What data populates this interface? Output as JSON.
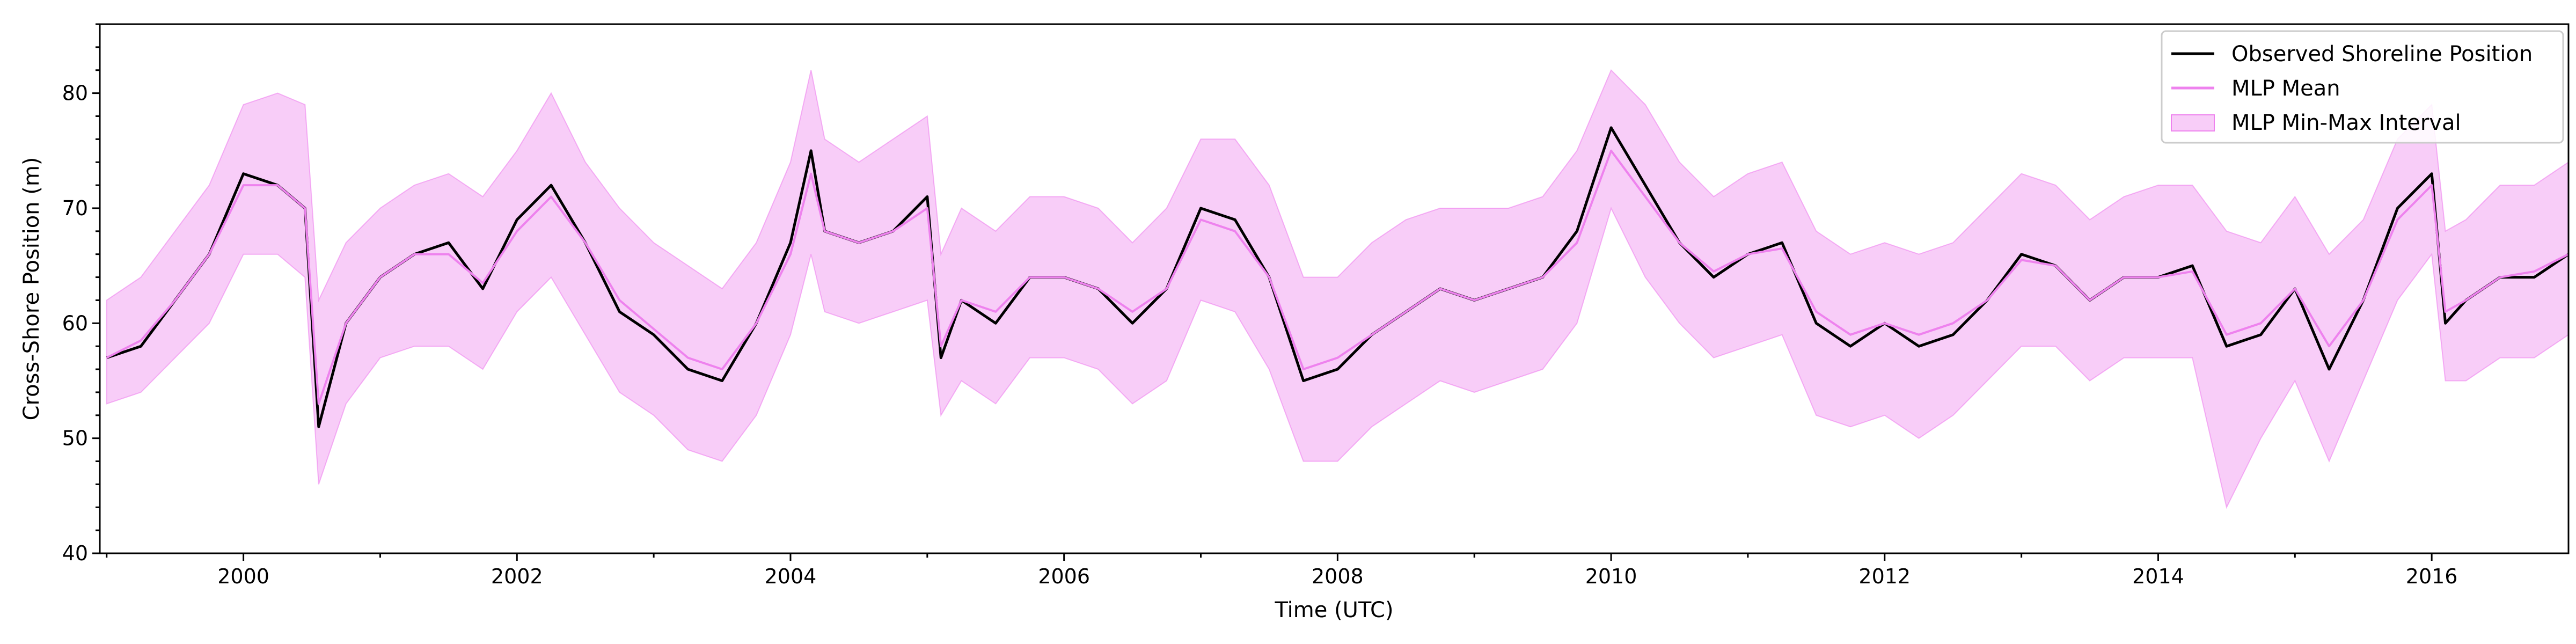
{
  "chart_data": {
    "type": "line",
    "title": "",
    "xlabel": "Time (UTC)",
    "ylabel": "Cross-Shore Position (m)",
    "xlim": [
      1998.95,
      2017.0
    ],
    "ylim": [
      40,
      86
    ],
    "x_ticks": [
      2000,
      2002,
      2004,
      2006,
      2008,
      2010,
      2012,
      2014,
      2016
    ],
    "x_tick_labels": [
      "2000",
      "2002",
      "2004",
      "2006",
      "2008",
      "2010",
      "2012",
      "2014",
      "2016"
    ],
    "y_ticks": [
      40,
      50,
      60,
      70,
      80
    ],
    "y_tick_labels": [
      "40",
      "50",
      "60",
      "70",
      "80"
    ],
    "grid": false,
    "legend_position": "top-right",
    "colors": {
      "observed": "#000000",
      "mean": "#ee82ee",
      "band_fill": "#ee82ee",
      "band_edge": "#ee82ee"
    },
    "series": [
      {
        "name": "Observed Shoreline Position",
        "x": [
          1999.0,
          1999.25,
          1999.5,
          1999.75,
          2000.0,
          2000.25,
          2000.45,
          2000.55,
          2000.75,
          2001.0,
          2001.25,
          2001.5,
          2001.75,
          2002.0,
          2002.25,
          2002.5,
          2002.75,
          2003.0,
          2003.25,
          2003.5,
          2003.75,
          2004.0,
          2004.15,
          2004.25,
          2004.5,
          2004.75,
          2005.0,
          2005.1,
          2005.25,
          2005.5,
          2005.75,
          2006.0,
          2006.25,
          2006.5,
          2006.75,
          2007.0,
          2007.25,
          2007.5,
          2007.75,
          2008.0,
          2008.25,
          2008.5,
          2008.75,
          2009.0,
          2009.25,
          2009.5,
          2009.75,
          2010.0,
          2010.25,
          2010.5,
          2010.75,
          2011.0,
          2011.25,
          2011.5,
          2011.75,
          2012.0,
          2012.25,
          2012.5,
          2012.75,
          2013.0,
          2013.25,
          2013.5,
          2013.75,
          2014.0,
          2014.25,
          2014.5,
          2014.75,
          2015.0,
          2015.25,
          2015.5,
          2015.75,
          2016.0,
          2016.1,
          2016.25,
          2016.5,
          2016.75,
          2017.0
        ],
        "values": [
          57,
          58,
          62,
          66,
          73,
          72,
          70,
          51,
          60,
          64,
          66,
          67,
          63,
          69,
          72,
          67,
          61,
          59,
          56,
          55,
          60,
          67,
          75,
          68,
          67,
          68,
          71,
          57,
          62,
          60,
          64,
          64,
          63,
          60,
          63,
          70,
          69,
          64,
          55,
          56,
          59,
          61,
          63,
          62,
          63,
          64,
          68,
          77,
          72,
          67,
          64,
          66,
          67,
          60,
          58,
          60,
          58,
          59,
          62,
          66,
          65,
          62,
          64,
          64,
          65,
          58,
          59,
          63,
          56,
          62,
          70,
          73,
          60,
          62,
          64,
          64,
          66
        ]
      },
      {
        "name": "MLP Mean",
        "x": [
          1999.0,
          1999.25,
          1999.5,
          1999.75,
          2000.0,
          2000.25,
          2000.45,
          2000.55,
          2000.75,
          2001.0,
          2001.25,
          2001.5,
          2001.75,
          2002.0,
          2002.25,
          2002.5,
          2002.75,
          2003.0,
          2003.25,
          2003.5,
          2003.75,
          2004.0,
          2004.15,
          2004.25,
          2004.5,
          2004.75,
          2005.0,
          2005.1,
          2005.25,
          2005.5,
          2005.75,
          2006.0,
          2006.25,
          2006.5,
          2006.75,
          2007.0,
          2007.25,
          2007.5,
          2007.75,
          2008.0,
          2008.25,
          2008.5,
          2008.75,
          2009.0,
          2009.25,
          2009.5,
          2009.75,
          2010.0,
          2010.25,
          2010.5,
          2010.75,
          2011.0,
          2011.25,
          2011.5,
          2011.75,
          2012.0,
          2012.25,
          2012.5,
          2012.75,
          2013.0,
          2013.25,
          2013.5,
          2013.75,
          2014.0,
          2014.25,
          2014.5,
          2014.75,
          2015.0,
          2015.25,
          2015.5,
          2015.75,
          2016.0,
          2016.1,
          2016.25,
          2016.5,
          2016.75,
          2017.0
        ],
        "values": [
          57,
          58.5,
          62,
          66,
          72,
          72,
          70,
          53,
          60,
          64,
          66,
          66,
          63.5,
          68,
          71,
          67,
          62,
          59.5,
          57,
          56,
          60,
          66,
          73,
          68,
          67,
          68,
          70,
          58,
          62,
          61,
          64,
          64,
          63,
          61,
          63,
          69,
          68,
          64,
          56,
          57,
          59,
          61,
          63,
          62,
          63,
          64,
          67,
          75,
          71,
          67,
          64.5,
          66,
          66.5,
          61,
          59,
          60,
          59,
          60,
          62,
          65.5,
          65,
          62,
          64,
          64,
          64.5,
          59,
          60,
          63,
          58,
          62,
          69,
          72,
          61,
          62,
          64,
          64.5,
          66
        ]
      }
    ],
    "band": {
      "name": "MLP Min-Max Interval",
      "x": [
        1999.0,
        1999.25,
        1999.5,
        1999.75,
        2000.0,
        2000.25,
        2000.45,
        2000.55,
        2000.75,
        2001.0,
        2001.25,
        2001.5,
        2001.75,
        2002.0,
        2002.25,
        2002.5,
        2002.75,
        2003.0,
        2003.25,
        2003.5,
        2003.75,
        2004.0,
        2004.15,
        2004.25,
        2004.5,
        2004.75,
        2005.0,
        2005.1,
        2005.25,
        2005.5,
        2005.75,
        2006.0,
        2006.25,
        2006.5,
        2006.75,
        2007.0,
        2007.25,
        2007.5,
        2007.75,
        2008.0,
        2008.25,
        2008.5,
        2008.75,
        2009.0,
        2009.25,
        2009.5,
        2009.75,
        2010.0,
        2010.25,
        2010.5,
        2010.75,
        2011.0,
        2011.25,
        2011.5,
        2011.75,
        2012.0,
        2012.25,
        2012.5,
        2012.75,
        2013.0,
        2013.25,
        2013.5,
        2013.75,
        2014.0,
        2014.25,
        2014.5,
        2014.75,
        2015.0,
        2015.25,
        2015.5,
        2015.75,
        2016.0,
        2016.1,
        2016.25,
        2016.5,
        2016.75,
        2017.0
      ],
      "lower": [
        53,
        54,
        57,
        60,
        66,
        66,
        64,
        46,
        53,
        57,
        58,
        58,
        56,
        61,
        64,
        59,
        54,
        52,
        49,
        48,
        52,
        59,
        66,
        61,
        60,
        61,
        62,
        52,
        55,
        53,
        57,
        57,
        56,
        53,
        55,
        62,
        61,
        56,
        48,
        48,
        51,
        53,
        55,
        54,
        55,
        56,
        60,
        70,
        64,
        60,
        57,
        58,
        59,
        52,
        51,
        52,
        50,
        52,
        55,
        58,
        58,
        55,
        57,
        57,
        57,
        44,
        50,
        55,
        48,
        55,
        62,
        66,
        55,
        55,
        57,
        57,
        59
      ],
      "upper": [
        62,
        64,
        68,
        72,
        79,
        80,
        79,
        62,
        67,
        70,
        72,
        73,
        71,
        75,
        80,
        74,
        70,
        67,
        65,
        63,
        67,
        74,
        82,
        76,
        74,
        76,
        78,
        66,
        70,
        68,
        71,
        71,
        70,
        67,
        70,
        76,
        76,
        72,
        64,
        64,
        67,
        69,
        70,
        70,
        70,
        71,
        75,
        82,
        79,
        74,
        71,
        73,
        74,
        68,
        66,
        67,
        66,
        67,
        70,
        73,
        72,
        69,
        71,
        72,
        72,
        68,
        67,
        71,
        66,
        69,
        76,
        79,
        68,
        69,
        72,
        72,
        74
      ]
    }
  }
}
